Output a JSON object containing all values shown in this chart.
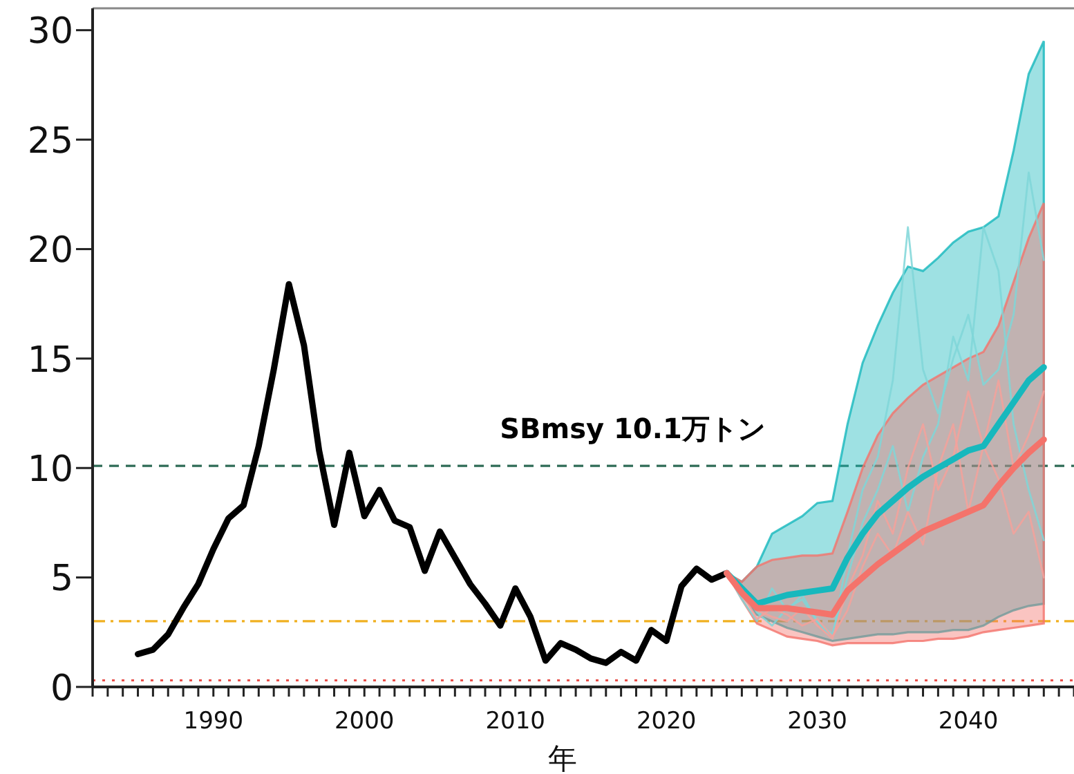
{
  "chart_data": {
    "type": "line",
    "xlabel": "年",
    "xlim": [
      1982,
      2047
    ],
    "ylim": [
      0,
      31
    ],
    "xticks": [
      {
        "value": 1982,
        "label": null
      },
      {
        "value": 1983,
        "label": null
      },
      {
        "value": 1984,
        "label": null
      },
      {
        "value": 1985,
        "label": null
      },
      {
        "value": 1986,
        "label": null
      },
      {
        "value": 1987,
        "label": null
      },
      {
        "value": 1988,
        "label": null
      },
      {
        "value": 1989,
        "label": null
      },
      1990,
      {
        "value": 1991,
        "label": null
      },
      {
        "value": 1992,
        "label": null
      },
      {
        "value": 1993,
        "label": null
      },
      {
        "value": 1994,
        "label": null
      },
      {
        "value": 1995,
        "label": null
      },
      {
        "value": 1996,
        "label": null
      },
      {
        "value": 1997,
        "label": null
      },
      {
        "value": 1998,
        "label": null
      },
      {
        "value": 1999,
        "label": null
      },
      2000,
      {
        "value": 2001,
        "label": null
      },
      {
        "value": 2002,
        "label": null
      },
      {
        "value": 2003,
        "label": null
      },
      {
        "value": 2004,
        "label": null
      },
      {
        "value": 2005,
        "label": null
      },
      {
        "value": 2006,
        "label": null
      },
      {
        "value": 2007,
        "label": null
      },
      {
        "value": 2008,
        "label": null
      },
      {
        "value": 2009,
        "label": null
      },
      2010,
      {
        "value": 2011,
        "label": null
      },
      {
        "value": 2012,
        "label": null
      },
      {
        "value": 2013,
        "label": null
      },
      {
        "value": 2014,
        "label": null
      },
      {
        "value": 2015,
        "label": null
      },
      {
        "value": 2016,
        "label": null
      },
      {
        "value": 2017,
        "label": null
      },
      {
        "value": 2018,
        "label": null
      },
      {
        "value": 2019,
        "label": null
      },
      2020,
      {
        "value": 2021,
        "label": null
      },
      {
        "value": 2022,
        "label": null
      },
      {
        "value": 2023,
        "label": null
      },
      {
        "value": 2024,
        "label": null
      },
      {
        "value": 2025,
        "label": null
      },
      {
        "value": 2026,
        "label": null
      },
      {
        "value": 2027,
        "label": null
      },
      {
        "value": 2028,
        "label": null
      },
      {
        "value": 2029,
        "label": null
      },
      2030,
      {
        "value": 2031,
        "label": null
      },
      {
        "value": 2032,
        "label": null
      },
      {
        "value": 2033,
        "label": null
      },
      {
        "value": 2034,
        "label": null
      },
      {
        "value": 2035,
        "label": null
      },
      {
        "value": 2036,
        "label": null
      },
      {
        "value": 2037,
        "label": null
      },
      {
        "value": 2038,
        "label": null
      },
      {
        "value": 2039,
        "label": null
      },
      2040,
      {
        "value": 2041,
        "label": null
      },
      {
        "value": 2042,
        "label": null
      },
      {
        "value": 2043,
        "label": null
      },
      {
        "value": 2044,
        "label": null
      },
      {
        "value": 2045,
        "label": null
      },
      {
        "value": 2046,
        "label": null
      },
      {
        "value": 2047,
        "label": null
      }
    ],
    "yticks": [
      0,
      5,
      10,
      15,
      20,
      25,
      30
    ],
    "grid": false,
    "marker": "none",
    "line_style": "solid",
    "ref_lines": [
      {
        "axis": "y",
        "value": 10.1,
        "label": "SBmsy 10.1万トン",
        "color": "#2e6b55",
        "line_style": "dashed"
      },
      {
        "axis": "y",
        "value": 3,
        "label": null,
        "color": "#f0b020",
        "line_style": "dashdot"
      },
      {
        "axis": "y",
        "value": 0.3,
        "label": null,
        "color": "#e8504a",
        "line_style": "dotted"
      }
    ],
    "series": [
      {
        "color": "#000000",
        "x": [
          1985,
          1986,
          1987,
          1988,
          1989,
          1990,
          1991,
          1992,
          1993,
          1994,
          1995,
          1996,
          1997,
          1998,
          1999,
          2000,
          2001,
          2002,
          2003,
          2004,
          2005,
          2006,
          2007,
          2008,
          2009,
          2010,
          2011,
          2012,
          2013,
          2014,
          2015,
          2016,
          2017,
          2018,
          2019,
          2020,
          2021,
          2022,
          2023,
          2024
        ],
        "values": [
          1.5,
          1.7,
          2.4,
          3.6,
          4.7,
          6.3,
          7.7,
          8.3,
          11.0,
          14.5,
          18.4,
          15.6,
          10.8,
          7.4,
          10.7,
          7.8,
          9.0,
          7.6,
          7.3,
          5.3,
          7.1,
          5.9,
          4.7,
          3.8,
          2.8,
          4.5,
          3.2,
          1.2,
          2.0,
          1.7,
          1.3,
          1.1,
          1.6,
          1.2,
          2.6,
          2.1,
          4.6,
          5.4,
          4.9,
          5.2
        ]
      },
      {
        "color": "#7fd6d8",
        "x": [
          2024,
          2025,
          2026,
          2027,
          2028,
          2029,
          2030,
          2031,
          2032,
          2033,
          2034,
          2035,
          2036,
          2037,
          2038,
          2039,
          2040,
          2041,
          2042,
          2043,
          2044,
          2045
        ],
        "values": [
          5.2,
          4.0,
          3.0,
          4.5,
          3.5,
          4.2,
          3.0,
          2.2,
          6.0,
          9.0,
          10.5,
          14.0,
          21.0,
          14.5,
          12.5,
          15.0,
          17.0,
          13.8,
          14.5,
          17.0,
          23.5,
          19.5
        ]
      },
      {
        "color": "#7fd6d8",
        "x": [
          2024,
          2025,
          2026,
          2027,
          2028,
          2029,
          2030,
          2031,
          2032,
          2033,
          2034,
          2035,
          2036,
          2037,
          2038,
          2039,
          2040,
          2041,
          2042,
          2043,
          2044,
          2045
        ],
        "values": [
          5.2,
          4.6,
          3.4,
          2.8,
          3.6,
          4.0,
          3.0,
          2.4,
          5.0,
          7.5,
          9.0,
          11.0,
          8.0,
          10.5,
          12.0,
          16.0,
          14.0,
          21.0,
          19.0,
          12.0,
          9.0,
          6.7
        ]
      },
      {
        "color": "#f5a19b",
        "x": [
          2024,
          2025,
          2026,
          2027,
          2028,
          2029,
          2030,
          2031,
          2032,
          2033,
          2034,
          2035,
          2036,
          2037,
          2038,
          2039,
          2040,
          2041,
          2042,
          2043,
          2044,
          2045
        ],
        "values": [
          5.2,
          4.4,
          3.5,
          3.2,
          3.0,
          3.6,
          2.8,
          2.2,
          4.5,
          6.0,
          8.5,
          7.0,
          10.0,
          12.0,
          9.0,
          10.5,
          13.5,
          11.0,
          14.0,
          10.0,
          11.5,
          13.5
        ]
      },
      {
        "color": "#f5a19b",
        "x": [
          2024,
          2025,
          2026,
          2027,
          2028,
          2029,
          2030,
          2031,
          2032,
          2033,
          2034,
          2035,
          2036,
          2037,
          2038,
          2039,
          2040,
          2041,
          2042,
          2043,
          2044,
          2045
        ],
        "values": [
          5.2,
          4.3,
          3.1,
          3.6,
          3.3,
          2.8,
          3.1,
          2.3,
          3.5,
          5.5,
          7.0,
          6.0,
          8.0,
          6.5,
          10.0,
          12.0,
          8.0,
          11.0,
          9.5,
          7.0,
          8.0,
          5.0
        ]
      },
      {
        "color": "#17b8bd",
        "x": [
          2024,
          2025,
          2026,
          2027,
          2028,
          2029,
          2030,
          2031,
          2032,
          2033,
          2034,
          2035,
          2036,
          2037,
          2038,
          2039,
          2040,
          2041,
          2042,
          2043,
          2044,
          2045
        ],
        "values": [
          5.2,
          4.5,
          3.8,
          4.0,
          4.2,
          4.3,
          4.4,
          4.5,
          5.9,
          7.0,
          7.9,
          8.5,
          9.1,
          9.6,
          10.0,
          10.4,
          10.8,
          11.0,
          12.0,
          13.0,
          14.0,
          14.6
        ],
        "lower": [
          5.2,
          4.2,
          3.3,
          3.0,
          2.7,
          2.5,
          2.3,
          2.1,
          2.2,
          2.3,
          2.4,
          2.4,
          2.5,
          2.5,
          2.5,
          2.6,
          2.6,
          2.8,
          3.2,
          3.5,
          3.7,
          3.8
        ],
        "upper": [
          5.2,
          4.8,
          5.5,
          7.0,
          7.4,
          7.8,
          8.4,
          8.5,
          12.0,
          14.8,
          16.5,
          18.0,
          19.2,
          19.0,
          19.6,
          20.3,
          20.8,
          21.0,
          21.5,
          24.5,
          28.0,
          29.5
        ]
      },
      {
        "color": "#f4736b",
        "x": [
          2024,
          2025,
          2026,
          2027,
          2028,
          2029,
          2030,
          2031,
          2032,
          2033,
          2034,
          2035,
          2036,
          2037,
          2038,
          2039,
          2040,
          2041,
          2042,
          2043,
          2044,
          2045
        ],
        "values": [
          5.2,
          4.3,
          3.6,
          3.6,
          3.6,
          3.5,
          3.4,
          3.3,
          4.4,
          5.0,
          5.6,
          6.1,
          6.6,
          7.1,
          7.4,
          7.7,
          8.0,
          8.3,
          9.2,
          10.0,
          10.7,
          11.3
        ],
        "lower": [
          5.2,
          4.0,
          2.9,
          2.6,
          2.3,
          2.2,
          2.1,
          1.9,
          2.0,
          2.0,
          2.0,
          2.0,
          2.1,
          2.1,
          2.2,
          2.2,
          2.3,
          2.5,
          2.6,
          2.7,
          2.8,
          2.9
        ],
        "upper": [
          5.2,
          4.8,
          5.5,
          5.8,
          5.9,
          6.0,
          6.0,
          6.1,
          8.0,
          10.0,
          11.5,
          12.5,
          13.2,
          13.8,
          14.2,
          14.6,
          15.0,
          15.3,
          16.5,
          18.5,
          20.5,
          22.1
        ]
      }
    ]
  }
}
